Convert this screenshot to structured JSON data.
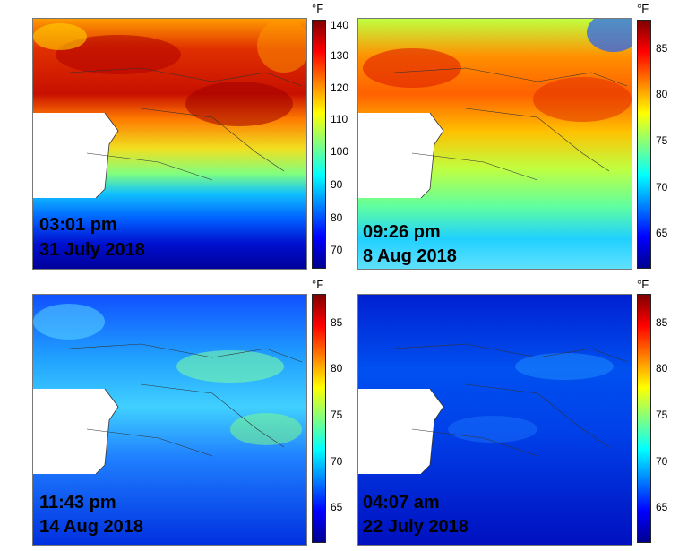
{
  "panels": [
    {
      "time": "03:01 pm",
      "date": "31 July 2018",
      "unit": "°F",
      "ticks": [
        "140",
        "130",
        "120",
        "110",
        "100",
        "90",
        "80",
        "70"
      ],
      "scale_range": [
        65,
        140
      ],
      "overall_temperature": "hot"
    },
    {
      "time": "09:26 pm",
      "date": "8 Aug 2018",
      "unit": "°F",
      "ticks": [
        "85",
        "80",
        "75",
        "70",
        "65"
      ],
      "scale_range": [
        61,
        88
      ],
      "overall_temperature": "warm"
    },
    {
      "time": "11:43 pm",
      "date": "14 Aug 2018",
      "unit": "°F",
      "ticks": [
        "85",
        "80",
        "75",
        "70",
        "65"
      ],
      "scale_range": [
        61,
        88
      ],
      "overall_temperature": "cool"
    },
    {
      "time": "04:07 am",
      "date": "22 July 2018",
      "unit": "°F",
      "ticks": [
        "85",
        "80",
        "75",
        "70",
        "65"
      ],
      "scale_range": [
        61,
        88
      ],
      "overall_temperature": "cold"
    }
  ],
  "colormap": [
    "#00008f",
    "#0000ff",
    "#0080ff",
    "#00ffff",
    "#80ff80",
    "#ffff00",
    "#ff8000",
    "#ff0000",
    "#800000"
  ]
}
